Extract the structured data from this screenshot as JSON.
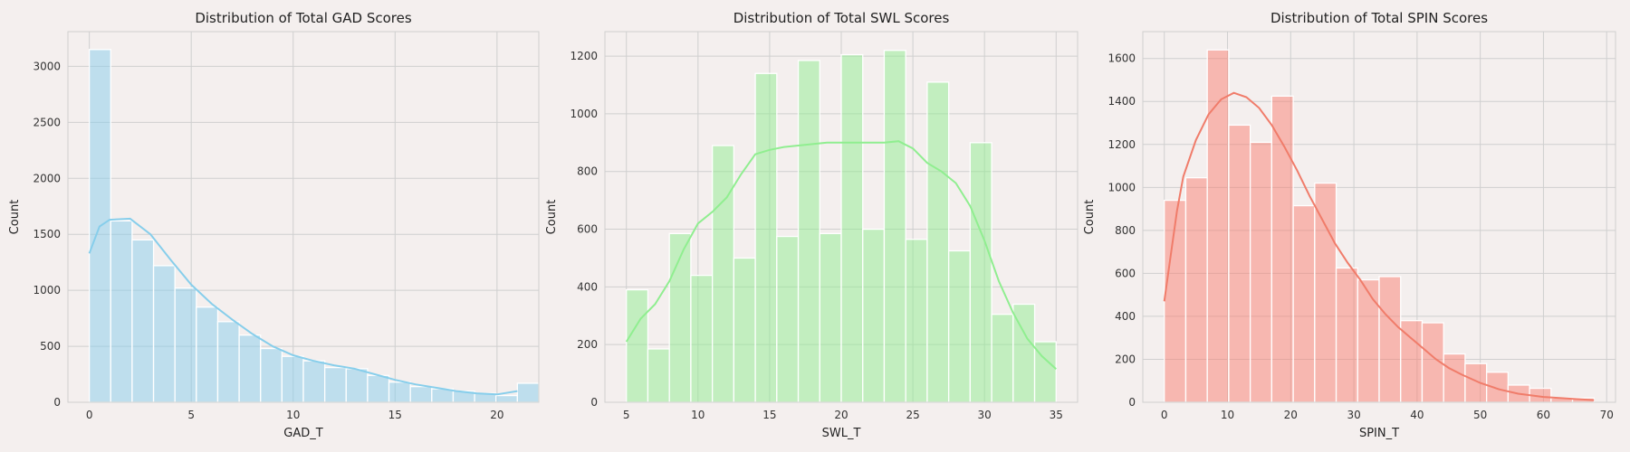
{
  "chart_data": [
    {
      "type": "bar",
      "title": "Distribution of Total GAD Scores",
      "xlabel": "GAD_T",
      "ylabel": "Count",
      "color": "#87ceeb",
      "kde_color": "#87ceeb",
      "xlim": [
        -1.05,
        22.05
      ],
      "ylim": [
        0,
        3310
      ],
      "xticks": [
        0,
        5,
        10,
        15,
        20
      ],
      "yticks": [
        0,
        500,
        1000,
        1500,
        2000,
        2500,
        3000
      ],
      "bin_start": 0,
      "bin_width": 1.05,
      "values": [
        3150,
        1620,
        1450,
        1220,
        1020,
        850,
        720,
        600,
        480,
        410,
        370,
        310,
        300,
        240,
        180,
        140,
        120,
        100,
        80,
        60,
        170
      ],
      "kde": [
        [
          0,
          1330
        ],
        [
          0.5,
          1570
        ],
        [
          1,
          1630
        ],
        [
          2,
          1640
        ],
        [
          3,
          1500
        ],
        [
          4,
          1270
        ],
        [
          5,
          1050
        ],
        [
          6,
          880
        ],
        [
          7,
          740
        ],
        [
          8,
          610
        ],
        [
          9,
          500
        ],
        [
          10,
          420
        ],
        [
          11,
          370
        ],
        [
          12,
          330
        ],
        [
          13,
          300
        ],
        [
          14,
          250
        ],
        [
          15,
          200
        ],
        [
          16,
          160
        ],
        [
          17,
          130
        ],
        [
          18,
          100
        ],
        [
          19,
          80
        ],
        [
          20,
          70
        ],
        [
          21,
          100
        ]
      ],
      "grid": true
    },
    {
      "type": "bar",
      "title": "Distribution of Total SWL Scores",
      "xlabel": "SWL_T",
      "ylabel": "Count",
      "color": "#90ee90",
      "kde_color": "#90ee90",
      "xlim": [
        3.5,
        36.5
      ],
      "ylim": [
        0,
        1285
      ],
      "xticks": [
        5,
        10,
        15,
        20,
        25,
        30,
        35
      ],
      "yticks": [
        0,
        200,
        400,
        600,
        800,
        1000,
        1200
      ],
      "bin_start": 5,
      "bin_width": 1.5,
      "values": [
        390,
        185,
        585,
        440,
        890,
        500,
        1140,
        575,
        1185,
        585,
        1205,
        600,
        1220,
        565,
        1110,
        525,
        900,
        305,
        340,
        210
      ],
      "kde": [
        [
          5,
          210
        ],
        [
          6,
          290
        ],
        [
          7,
          340
        ],
        [
          8,
          420
        ],
        [
          9,
          530
        ],
        [
          10,
          620
        ],
        [
          11,
          660
        ],
        [
          12,
          710
        ],
        [
          13,
          790
        ],
        [
          14,
          860
        ],
        [
          15,
          875
        ],
        [
          16,
          885
        ],
        [
          17,
          890
        ],
        [
          18,
          895
        ],
        [
          19,
          900
        ],
        [
          20,
          900
        ],
        [
          21,
          900
        ],
        [
          22,
          900
        ],
        [
          23,
          900
        ],
        [
          24,
          905
        ],
        [
          25,
          880
        ],
        [
          26,
          830
        ],
        [
          27,
          800
        ],
        [
          28,
          760
        ],
        [
          29,
          680
        ],
        [
          30,
          560
        ],
        [
          31,
          420
        ],
        [
          32,
          310
        ],
        [
          33,
          220
        ],
        [
          34,
          160
        ],
        [
          35,
          115
        ]
      ],
      "grid": true
    },
    {
      "type": "bar",
      "title": "Distribution of Total SPIN Scores",
      "xlabel": "SPIN_T",
      "ylabel": "Count",
      "color": "#fa8072",
      "kde_color": "#f07c6a",
      "xlim": [
        -3.4,
        71.4
      ],
      "ylim": [
        0,
        1725
      ],
      "xticks": [
        0,
        10,
        20,
        30,
        40,
        50,
        60,
        70
      ],
      "yticks": [
        0,
        200,
        400,
        600,
        800,
        1000,
        1200,
        1400,
        1600
      ],
      "bin_start": 0,
      "bin_width": 3.4,
      "values": [
        940,
        1045,
        1640,
        1290,
        1210,
        1425,
        915,
        1020,
        625,
        570,
        585,
        380,
        370,
        225,
        180,
        140,
        80,
        65,
        20,
        20
      ],
      "kde": [
        [
          0,
          470
        ],
        [
          1,
          680
        ],
        [
          2,
          890
        ],
        [
          3,
          1050
        ],
        [
          5,
          1220
        ],
        [
          7,
          1340
        ],
        [
          9,
          1410
        ],
        [
          11,
          1440
        ],
        [
          13,
          1420
        ],
        [
          15,
          1370
        ],
        [
          17,
          1290
        ],
        [
          19,
          1190
        ],
        [
          21,
          1080
        ],
        [
          23,
          960
        ],
        [
          25,
          850
        ],
        [
          27,
          740
        ],
        [
          29,
          650
        ],
        [
          31,
          570
        ],
        [
          33,
          480
        ],
        [
          35,
          410
        ],
        [
          37,
          350
        ],
        [
          39,
          300
        ],
        [
          41,
          250
        ],
        [
          43,
          200
        ],
        [
          45,
          160
        ],
        [
          47,
          130
        ],
        [
          50,
          90
        ],
        [
          53,
          60
        ],
        [
          56,
          40
        ],
        [
          60,
          25
        ],
        [
          65,
          15
        ],
        [
          68,
          10
        ]
      ],
      "grid": true
    }
  ]
}
